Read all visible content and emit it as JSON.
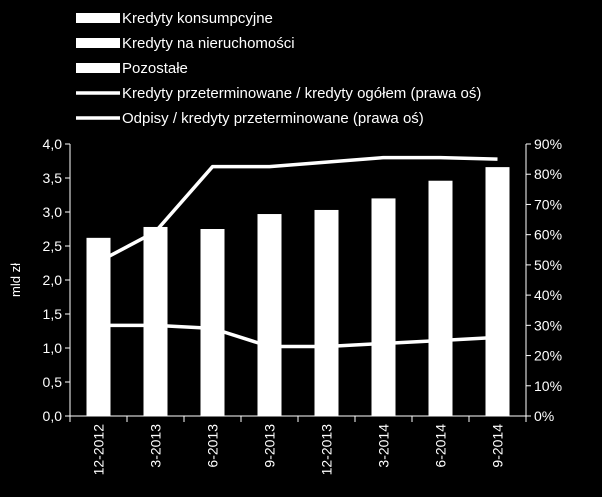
{
  "chart_data": {
    "type": "bar",
    "categories": [
      "12-2012",
      "3-2013",
      "6-2013",
      "9-2013",
      "12-2013",
      "3-2014",
      "6-2014",
      "9-2014"
    ],
    "ylabel": "mld zł",
    "ylim": [
      0,
      4.0
    ],
    "y_ticks": [
      "0,0",
      "0,5",
      "1,0",
      "1,5",
      "2,0",
      "2,5",
      "3,0",
      "3,5",
      "4,0"
    ],
    "y2lim": [
      0,
      0.9
    ],
    "y2_ticks": [
      "0%",
      "10%",
      "20%",
      "30%",
      "40%",
      "50%",
      "60%",
      "70%",
      "80%",
      "90%"
    ],
    "legend_position": "top",
    "colors": {
      "background": "#000000",
      "foreground": "#ffffff"
    },
    "series": [
      {
        "name": "Kredyty konsumpcyjne",
        "type": "bar",
        "axis": "left",
        "values": [
          2.62,
          2.78,
          2.75,
          2.97,
          3.03,
          3.2,
          3.46,
          3.66
        ]
      },
      {
        "name": "Kredyty na nieruchomości",
        "type": "bar",
        "axis": "left",
        "values": [
          0,
          0,
          0,
          0,
          0,
          0,
          0,
          0
        ]
      },
      {
        "name": "Pozostałe",
        "type": "bar",
        "axis": "left",
        "values": [
          0,
          0,
          0,
          0,
          0,
          0,
          0,
          0
        ]
      },
      {
        "name": "Kredyty przeterminowane / kredyty ogółem (prawa oś)",
        "type": "line",
        "axis": "right",
        "values": [
          0.51,
          0.61,
          0.825,
          0.825,
          0.84,
          0.855,
          0.855,
          0.85
        ]
      },
      {
        "name": "Odpisy / kredyty przeterminowane (prawa oś)",
        "type": "line",
        "axis": "right",
        "values": [
          0.3,
          0.3,
          0.29,
          0.23,
          0.23,
          0.24,
          0.25,
          0.26
        ]
      }
    ]
  }
}
